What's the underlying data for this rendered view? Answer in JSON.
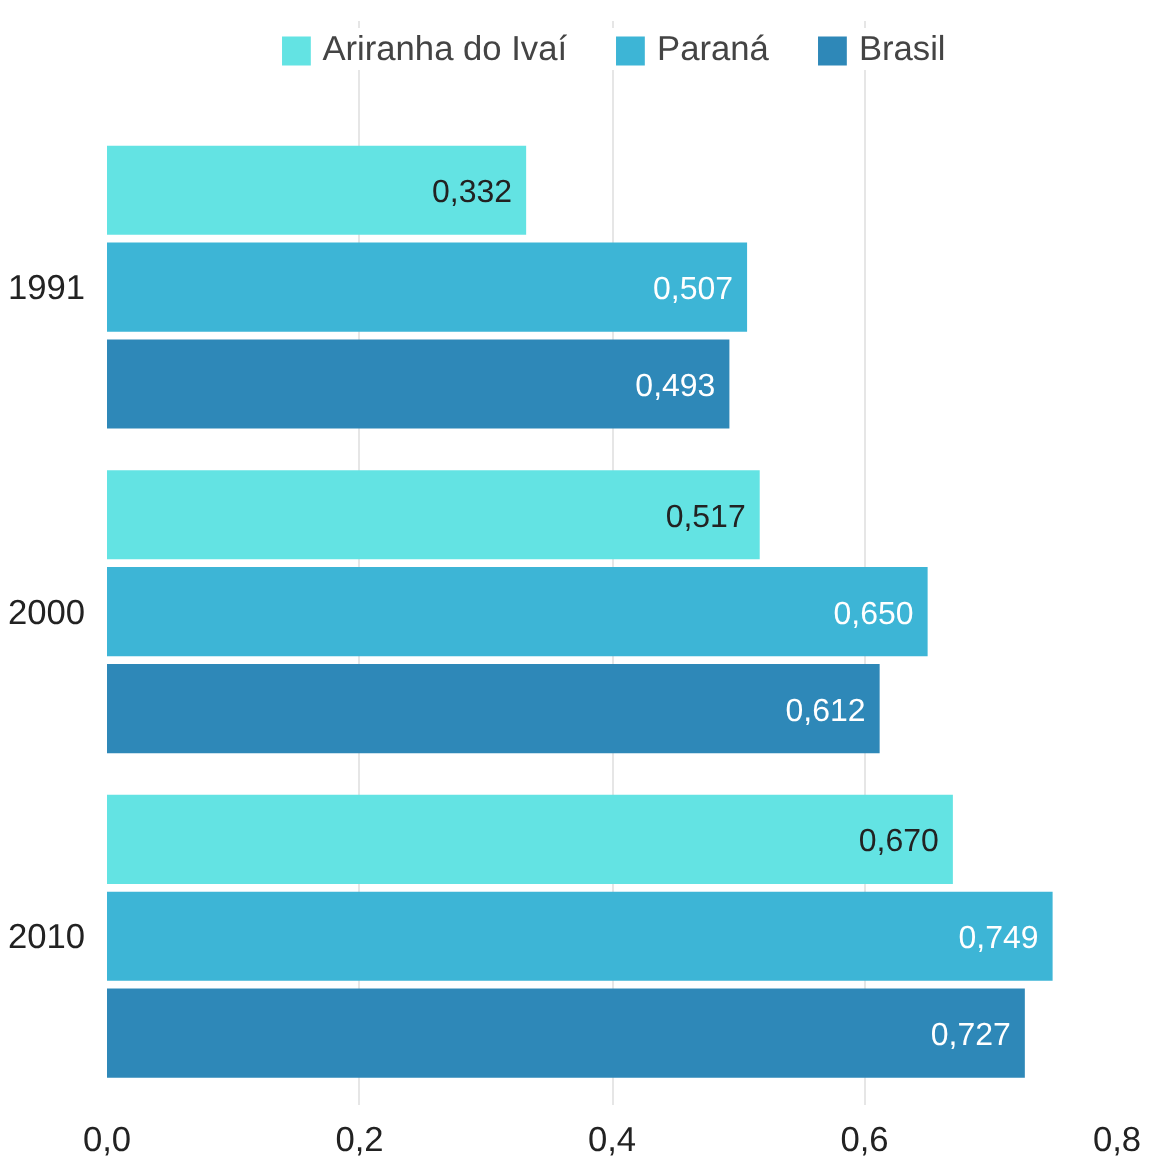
{
  "chart_data": {
    "type": "bar",
    "orientation": "horizontal",
    "categories": [
      "1991",
      "2000",
      "2010"
    ],
    "series": [
      {
        "name": "Ariranha do Ivaí",
        "color": "#63e3e3",
        "values": [
          0.332,
          0.517,
          0.67
        ],
        "value_labels": [
          "0,332",
          "0,517",
          "0,670"
        ]
      },
      {
        "name": "Paraná",
        "color": "#3db5d6",
        "values": [
          0.507,
          0.65,
          0.749
        ],
        "value_labels": [
          "0,507",
          "0,650",
          "0,749"
        ]
      },
      {
        "name": "Brasil",
        "color": "#2e88b8",
        "values": [
          0.493,
          0.612,
          0.727
        ],
        "value_labels": [
          "0,493",
          "0,612",
          "0,727"
        ]
      }
    ],
    "xlim": [
      0,
      0.8
    ],
    "xticks": [
      {
        "value": 0,
        "label": "0,0"
      },
      {
        "value": 0.2,
        "label": "0,2"
      },
      {
        "value": 0.4,
        "label": "0,4"
      },
      {
        "value": 0.6,
        "label": "0,6"
      },
      {
        "value": 0.8,
        "label": "0,8"
      }
    ],
    "grid": "x",
    "legend": "top"
  }
}
